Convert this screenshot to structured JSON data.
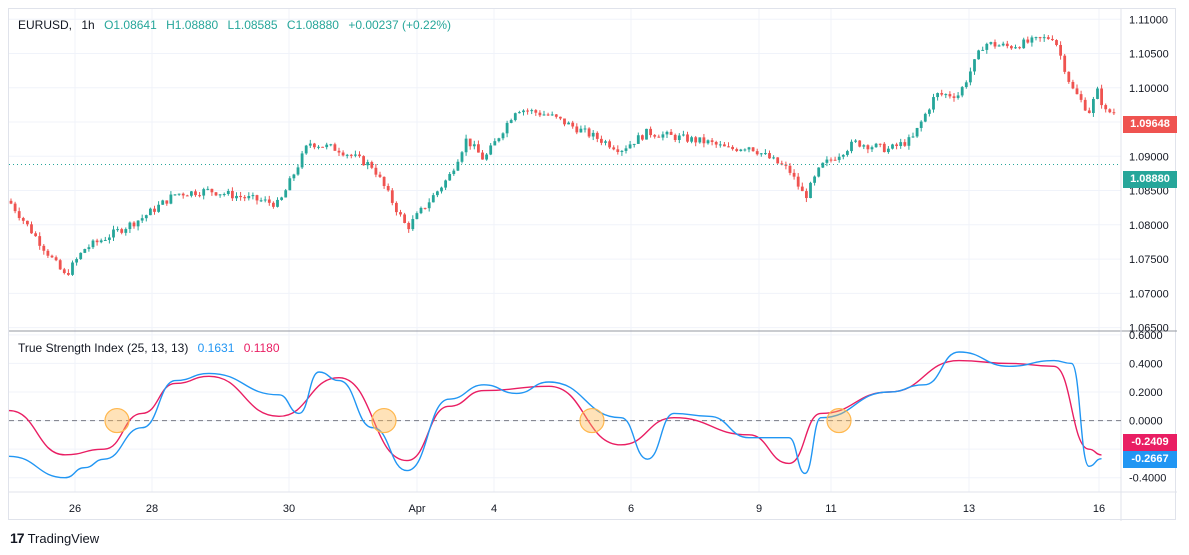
{
  "symbol_legend": {
    "symbol": "EURUSD",
    "interval": "1h",
    "open": "O1.08641",
    "high": "H1.08880",
    "low": "L1.08585",
    "close": "C1.08880",
    "change": "+0.00237 (+0.22%)"
  },
  "indicator_legend": {
    "name": "True Strength Index (25, 13, 13)",
    "tsi_value": "0.1631",
    "signal_value": "0.1180"
  },
  "price_axis": {
    "ticks": [
      "1.11000",
      "1.10500",
      "1.10000",
      "1.09500",
      "1.09000",
      "1.08500",
      "1.08000",
      "1.07500",
      "1.07000",
      "1.06500"
    ],
    "last_price_label": "1.09648",
    "current_price_label": "1.08880"
  },
  "tsi_axis": {
    "ticks": [
      "0.6000",
      "0.4000",
      "0.2000",
      "0.0000",
      "-0.2000",
      "-0.4000"
    ],
    "signal_label": "-0.2409",
    "tsi_label": "-0.2667"
  },
  "time_axis": {
    "ticks": [
      "26",
      "28",
      "30",
      "Apr",
      "4",
      "6",
      "9",
      "11",
      "13",
      "16"
    ]
  },
  "brand": {
    "name": "TradingView"
  },
  "colors": {
    "bull": "#26a69a",
    "bear": "#ef5350",
    "tsi_line": "#2196f3",
    "signal_line": "#e91e63",
    "crossover_marker": "#ffb74d"
  },
  "chart_data": [
    {
      "type": "candlestick",
      "title": "EURUSD, 1h",
      "ylim": [
        1.0645,
        1.1115
      ],
      "close_path": [
        [
          "25",
          1.0835
        ],
        [
          "26",
          1.0725
        ],
        [
          "26",
          1.0765
        ],
        [
          "27",
          1.078
        ],
        [
          "28",
          1.081
        ],
        [
          "28",
          1.0845
        ],
        [
          "29",
          1.085
        ],
        [
          "30",
          1.083
        ],
        [
          "30",
          1.092
        ],
        [
          "31",
          1.091
        ],
        [
          "31",
          1.0885
        ],
        [
          "Apr",
          1.0795
        ],
        [
          "3",
          1.087
        ],
        [
          "3",
          1.0925
        ],
        [
          "4",
          1.0895
        ],
        [
          "4",
          1.097
        ],
        [
          "5",
          1.096
        ],
        [
          "5",
          1.0935
        ],
        [
          "6",
          1.091
        ],
        [
          "6",
          1.0935
        ],
        [
          "8",
          1.092
        ],
        [
          "8",
          1.091
        ],
        [
          "9",
          1.0915
        ],
        [
          "10",
          1.088
        ],
        [
          "10",
          1.084
        ],
        [
          "11",
          1.0885
        ],
        [
          "11",
          1.092
        ],
        [
          "12",
          1.091
        ],
        [
          "12",
          1.0925
        ],
        [
          "12",
          1.099
        ],
        [
          "13",
          1.099
        ],
        [
          "13",
          1.1065
        ],
        [
          "14",
          1.106
        ],
        [
          "15",
          1.1075
        ],
        [
          "15",
          1.1
        ],
        [
          "16",
          1.0965
        ],
        [
          "16",
          1.0995
        ],
        [
          "16",
          1.09648
        ]
      ],
      "current_price": 1.0888,
      "last_price": 1.09648
    },
    {
      "type": "line",
      "title": "True Strength Index (25, 13, 13)",
      "ylim": [
        -0.5,
        0.62
      ],
      "zero_line": 0,
      "series": [
        {
          "name": "TSI",
          "points": [
            [
              "25",
              -0.25
            ],
            [
              "26",
              -0.4
            ],
            [
              "26",
              -0.33
            ],
            [
              "27",
              -0.27
            ],
            [
              "28",
              -0.05
            ],
            [
              "28",
              0.28
            ],
            [
              "29",
              0.33
            ],
            [
              "30",
              0.18
            ],
            [
              "30",
              0.05
            ],
            [
              "30",
              0.34
            ],
            [
              "31",
              0.28
            ],
            [
              "31",
              -0.05
            ],
            [
              "Apr",
              -0.35
            ],
            [
              "3",
              0.15
            ],
            [
              "4",
              0.25
            ],
            [
              "4",
              0.19
            ],
            [
              "5",
              0.27
            ],
            [
              "6",
              0.02
            ],
            [
              "6",
              -0.27
            ],
            [
              "7",
              0.05
            ],
            [
              "8",
              0.03
            ],
            [
              "9",
              -0.12
            ],
            [
              "10",
              -0.12
            ],
            [
              "10",
              -0.37
            ],
            [
              "11",
              0.02
            ],
            [
              "12",
              0.2
            ],
            [
              "12",
              0.25
            ],
            [
              "13",
              0.48
            ],
            [
              "14",
              0.38
            ],
            [
              "15",
              0.42
            ],
            [
              "15",
              0.4
            ],
            [
              "16",
              -0.32
            ],
            [
              "16",
              -0.2667
            ]
          ]
        },
        {
          "name": "Signal",
          "points": [
            [
              "25",
              0.07
            ],
            [
              "26",
              -0.24
            ],
            [
              "27",
              -0.2
            ],
            [
              "28",
              0.05
            ],
            [
              "28",
              0.26
            ],
            [
              "29",
              0.31
            ],
            [
              "30",
              0.03
            ],
            [
              "31",
              0.3
            ],
            [
              "Apr",
              -0.28
            ],
            [
              "3",
              0.1
            ],
            [
              "4",
              0.21
            ],
            [
              "5",
              0.24
            ],
            [
              "6",
              -0.17
            ],
            [
              "7",
              0.02
            ],
            [
              "9",
              -0.1
            ],
            [
              "10",
              -0.3
            ],
            [
              "11",
              0.05
            ],
            [
              "12",
              0.2
            ],
            [
              "13",
              0.42
            ],
            [
              "14",
              0.4
            ],
            [
              "15",
              0.38
            ],
            [
              "16",
              -0.2
            ],
            [
              "16",
              -0.2409
            ]
          ]
        }
      ],
      "crossovers": [
        [
          "27",
          0.0
        ],
        [
          "31",
          0.0
        ],
        [
          "6",
          0.0
        ],
        [
          "11",
          0.0
        ]
      ]
    }
  ]
}
